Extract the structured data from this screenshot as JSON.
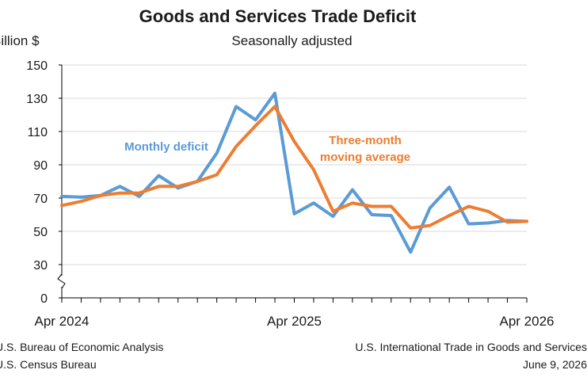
{
  "title": "Goods and Services Trade Deficit",
  "subtitle": "Seasonally adjusted",
  "y_unit": "Billion $",
  "footer": {
    "left_line1": "U.S. Bureau of Economic Analysis",
    "left_line2": "U.S. Census Bureau",
    "right_line1": "U.S. International Trade in Goods and Services",
    "right_line2": "June 9, 2026"
  },
  "colors": {
    "monthly": "#5b9bd5",
    "average": "#ed7d31",
    "axis": "#000000",
    "grid": "#d9d9d9"
  },
  "chart_data": {
    "type": "line",
    "ylim": [
      0,
      150
    ],
    "y_ticks": [
      0,
      30,
      50,
      70,
      90,
      110,
      130,
      150
    ],
    "y_axis_break": true,
    "grid": true,
    "x_tick_labels": [
      {
        "index": 0,
        "label": "Apr 2024"
      },
      {
        "index": 12,
        "label": "Apr 2025"
      },
      {
        "index": 24,
        "label": "Apr 2026"
      }
    ],
    "x": [
      "Apr 2024",
      "May 2024",
      "Jun 2024",
      "Jul 2024",
      "Aug 2024",
      "Sep 2024",
      "Oct 2024",
      "Nov 2024",
      "Dec 2024",
      "Jan 2025",
      "Feb 2025",
      "Mar 2025",
      "Apr 2025",
      "May 2025",
      "Jun 2025",
      "Jul 2025",
      "Aug 2025",
      "Sep 2025",
      "Oct 2025",
      "Nov 2025",
      "Dec 2025",
      "Jan 2026",
      "Feb 2026",
      "Mar 2026",
      "Apr 2026"
    ],
    "series": [
      {
        "name": "Monthly deficit",
        "label_lines": [
          "Monthly deficit"
        ],
        "color": "#5b9bd5",
        "values": [
          71,
          70.5,
          71.5,
          77,
          71,
          83.5,
          76,
          80,
          97,
          125,
          117,
          133,
          60.5,
          67,
          59,
          75,
          60,
          59.5,
          37.5,
          64,
          76.5,
          54.5,
          55,
          56.5,
          56
        ]
      },
      {
        "name": "Three-month moving average",
        "label_lines": [
          "Three-month",
          "moving average"
        ],
        "color": "#ed7d31",
        "values": [
          65.5,
          68,
          71.5,
          73,
          73,
          77,
          77,
          80,
          84,
          101,
          113.5,
          125,
          104,
          87,
          62,
          67,
          65,
          65,
          52,
          53.5,
          59.5,
          65,
          62,
          55.5,
          56
        ]
      }
    ]
  }
}
